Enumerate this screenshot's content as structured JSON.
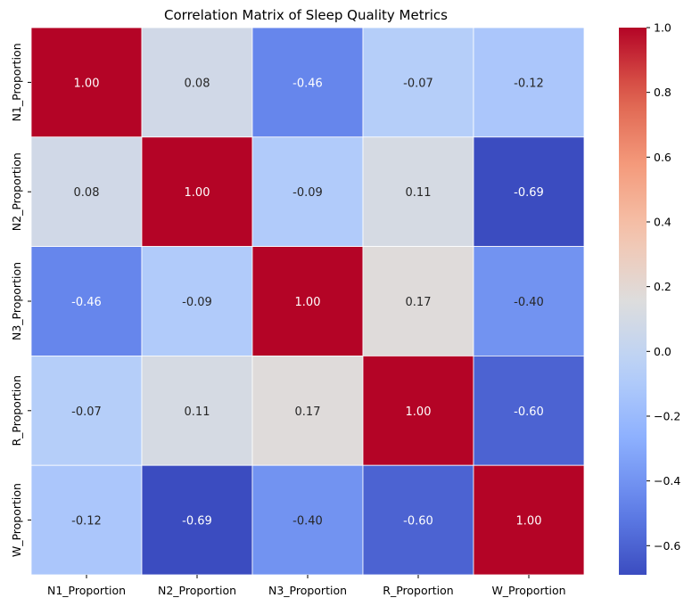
{
  "chart_data": {
    "type": "heatmap",
    "title": "Correlation Matrix of Sleep Quality Metrics",
    "xlabel": "",
    "ylabel": "",
    "x_categories": [
      "N1_Proportion",
      "N2_Proportion",
      "N3_Proportion",
      "R_Proportion",
      "W_Proportion"
    ],
    "y_categories": [
      "N1_Proportion",
      "N2_Proportion",
      "N3_Proportion",
      "R_Proportion",
      "W_Proportion"
    ],
    "values": [
      [
        1.0,
        0.08,
        -0.46,
        -0.07,
        -0.12
      ],
      [
        0.08,
        1.0,
        -0.09,
        0.11,
        -0.69
      ],
      [
        -0.46,
        -0.09,
        1.0,
        0.17,
        -0.4
      ],
      [
        -0.07,
        0.11,
        0.17,
        1.0,
        -0.6
      ],
      [
        -0.12,
        -0.69,
        -0.4,
        -0.6,
        1.0
      ]
    ],
    "annotation_format": "0.00",
    "colormap": "coolwarm",
    "vmin": -0.69,
    "vmax": 1.0,
    "colorbar_ticks": [
      1.0,
      0.8,
      0.6,
      0.4,
      0.2,
      0.0,
      -0.2,
      -0.4,
      -0.6
    ],
    "colorbar_tick_labels": [
      "1.0",
      "0.8",
      "0.6",
      "0.4",
      "0.2",
      "0.0",
      "−0.2",
      "−0.4",
      "−0.6"
    ],
    "grid": false,
    "cell_border_color": "#ffffff"
  }
}
